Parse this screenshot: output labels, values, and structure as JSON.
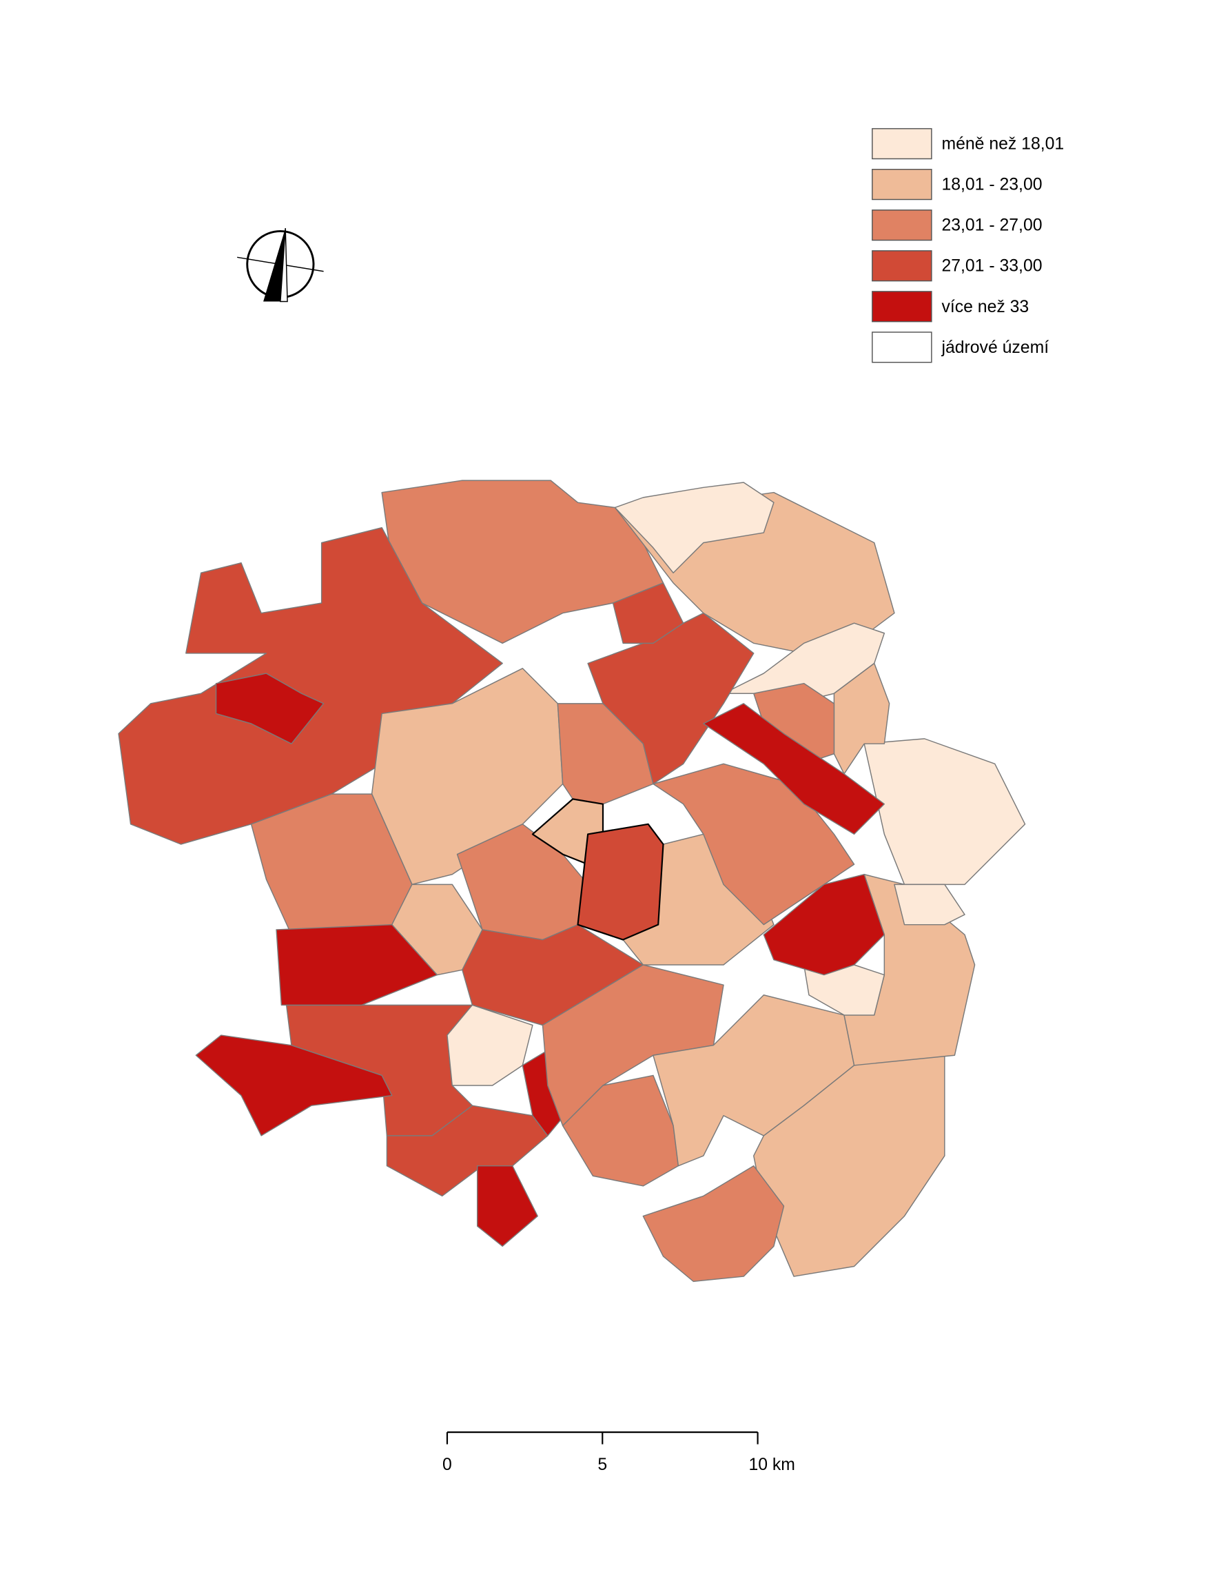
{
  "legend": {
    "items": [
      {
        "label": "méně než 18,01",
        "color": "#fde9d8"
      },
      {
        "label": "18,01 - 23,00",
        "color": "#efbb98"
      },
      {
        "label": "23,01 - 27,00",
        "color": "#e08263"
      },
      {
        "label": "27,01 - 33,00",
        "color": "#d14a36"
      },
      {
        "label": "více než 33",
        "color": "#c4100f"
      },
      {
        "label": "jádrové území",
        "color": "#ffffff"
      }
    ]
  },
  "scale_bar": {
    "ticks": [
      "0",
      "5",
      "10 km"
    ]
  }
}
